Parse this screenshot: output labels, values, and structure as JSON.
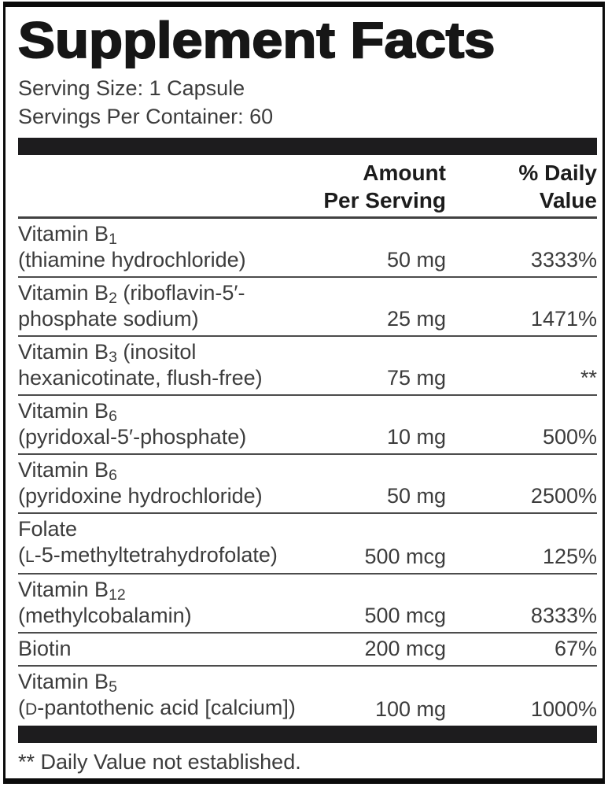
{
  "title": "Supplement Facts",
  "serving": {
    "size": "Serving Size: 1 Capsule",
    "per_container": "Servings Per Container: 60"
  },
  "columns": {
    "amount": [
      "Amount",
      "Per Serving"
    ],
    "daily_value": [
      "% Daily",
      "Value"
    ]
  },
  "table": {
    "rows": [
      {
        "name_text": "Vitamin B1 (thiamine hydrochloride)",
        "name_lines": [
          [
            {
              "t": "Vitamin B"
            },
            {
              "t": "1",
              "sub": true
            }
          ],
          [
            {
              "t": "(thiamine hydrochloride)"
            }
          ]
        ],
        "amount": "50 mg",
        "daily_value": "3333%"
      },
      {
        "name_text": "Vitamin B2 (riboflavin-5′-phosphate sodium)",
        "name_lines": [
          [
            {
              "t": "Vitamin B"
            },
            {
              "t": "2",
              "sub": true
            },
            {
              "t": " (riboflavin-5′-"
            }
          ],
          [
            {
              "t": "phosphate sodium)"
            }
          ]
        ],
        "amount": "25 mg",
        "daily_value": "1471%"
      },
      {
        "name_text": "Vitamin B3 (inositol hexanicotinate, flush-free)",
        "name_lines": [
          [
            {
              "t": "Vitamin B"
            },
            {
              "t": "3",
              "sub": true
            },
            {
              "t": " (inositol"
            }
          ],
          [
            {
              "t": "hexanicotinate, flush-free)"
            }
          ]
        ],
        "amount": "75 mg",
        "daily_value": "**"
      },
      {
        "name_text": "Vitamin B6 (pyridoxal-5′-phosphate)",
        "name_lines": [
          [
            {
              "t": "Vitamin B"
            },
            {
              "t": "6",
              "sub": true
            }
          ],
          [
            {
              "t": "(pyridoxal-5′-phosphate)"
            }
          ]
        ],
        "amount": "10 mg",
        "daily_value": "500%"
      },
      {
        "name_text": "Vitamin B6 (pyridoxine hydrochloride)",
        "name_lines": [
          [
            {
              "t": "Vitamin B"
            },
            {
              "t": "6",
              "sub": true
            }
          ],
          [
            {
              "t": "(pyridoxine hydrochloride)"
            }
          ]
        ],
        "amount": "50 mg",
        "daily_value": "2500%"
      },
      {
        "name_text": "Folate (L-5-methyltetrahydrofolate)",
        "name_lines": [
          [
            {
              "t": "Folate"
            }
          ],
          [
            {
              "t": "("
            },
            {
              "t": "L",
              "smallcap": true
            },
            {
              "t": "-5-methyltetrahydrofolate)"
            }
          ]
        ],
        "amount": "500 mcg",
        "daily_value": "125%"
      },
      {
        "name_text": "Vitamin B12 (methylcobalamin)",
        "name_lines": [
          [
            {
              "t": "Vitamin B"
            },
            {
              "t": "12",
              "sub": true
            }
          ],
          [
            {
              "t": "(methylcobalamin)"
            }
          ]
        ],
        "amount": "500 mcg",
        "daily_value": "8333%"
      },
      {
        "name_text": "Biotin",
        "name_lines": [
          [
            {
              "t": "Biotin"
            }
          ]
        ],
        "amount": "200 mcg",
        "daily_value": "67%"
      },
      {
        "name_text": "Vitamin B5 (D-pantothenic acid [calcium])",
        "name_lines": [
          [
            {
              "t": "Vitamin B"
            },
            {
              "t": "5",
              "sub": true
            }
          ],
          [
            {
              "t": "("
            },
            {
              "t": "D",
              "smallcap": true
            },
            {
              "t": "-pantothenic acid [calcium])"
            }
          ]
        ],
        "amount": "100 mg",
        "daily_value": "1000%"
      }
    ]
  },
  "footnote": "** Daily Value not established.",
  "colors": {
    "frame": "#0b0b0b",
    "divider_bar": "#1d1c1e",
    "body_text": "#3c3c3c",
    "heading_text": "#161616",
    "separator": "#4c4c4c",
    "background": "#ffffff"
  }
}
